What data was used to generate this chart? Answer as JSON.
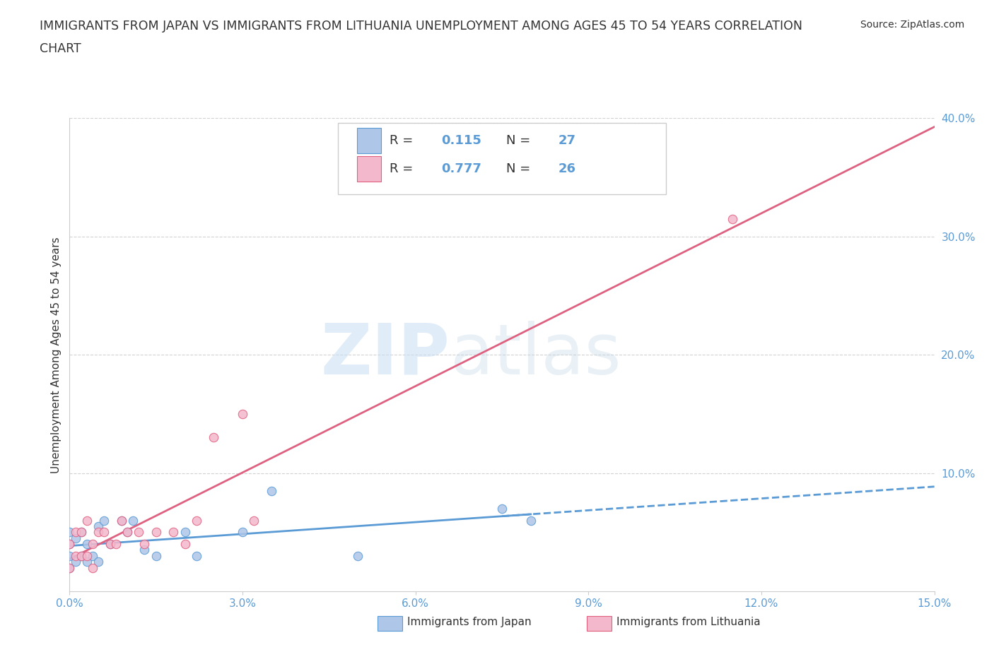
{
  "title_line1": "IMMIGRANTS FROM JAPAN VS IMMIGRANTS FROM LITHUANIA UNEMPLOYMENT AMONG AGES 45 TO 54 YEARS CORRELATION",
  "title_line2": "CHART",
  "source_text": "Source: ZipAtlas.com",
  "ylabel": "Unemployment Among Ages 45 to 54 years",
  "xlim": [
    0.0,
    0.15
  ],
  "ylim": [
    0.0,
    0.4
  ],
  "xticks": [
    0.0,
    0.03,
    0.06,
    0.09,
    0.12,
    0.15
  ],
  "yticks": [
    0.1,
    0.2,
    0.3,
    0.4
  ],
  "japan_color": "#aec6e8",
  "japan_edge": "#5b9bd5",
  "lithuania_color": "#f4b8cc",
  "lithuania_edge": "#e06080",
  "trend_japan_color": "#5b9bd5",
  "trend_lith_color": "#e06080",
  "japan_R": 0.115,
  "japan_N": 27,
  "lithuania_R": 0.777,
  "lithuania_N": 26,
  "japan_points_x": [
    0.0,
    0.0,
    0.0,
    0.0,
    0.001,
    0.001,
    0.002,
    0.002,
    0.003,
    0.003,
    0.004,
    0.005,
    0.005,
    0.006,
    0.007,
    0.009,
    0.01,
    0.011,
    0.013,
    0.015,
    0.02,
    0.022,
    0.03,
    0.035,
    0.05,
    0.075,
    0.08
  ],
  "japan_points_y": [
    0.02,
    0.03,
    0.04,
    0.05,
    0.025,
    0.045,
    0.03,
    0.05,
    0.025,
    0.04,
    0.03,
    0.025,
    0.055,
    0.06,
    0.04,
    0.06,
    0.05,
    0.06,
    0.035,
    0.03,
    0.05,
    0.03,
    0.05,
    0.085,
    0.03,
    0.07,
    0.06
  ],
  "lith_points_x": [
    0.0,
    0.0,
    0.001,
    0.001,
    0.002,
    0.002,
    0.003,
    0.003,
    0.004,
    0.004,
    0.005,
    0.006,
    0.007,
    0.008,
    0.009,
    0.01,
    0.012,
    0.013,
    0.015,
    0.018,
    0.02,
    0.022,
    0.025,
    0.03,
    0.032,
    0.115
  ],
  "lith_points_y": [
    0.02,
    0.04,
    0.03,
    0.05,
    0.03,
    0.05,
    0.03,
    0.06,
    0.02,
    0.04,
    0.05,
    0.05,
    0.04,
    0.04,
    0.06,
    0.05,
    0.05,
    0.04,
    0.05,
    0.05,
    0.04,
    0.06,
    0.13,
    0.15,
    0.06,
    0.315
  ],
  "watermark_zip": "ZIP",
  "watermark_atlas": "atlas",
  "bg_color": "#ffffff",
  "grid_color": "#cccccc",
  "title_color": "#333333",
  "tick_color": "#5b9bd5",
  "legend_text_color": "#333333"
}
